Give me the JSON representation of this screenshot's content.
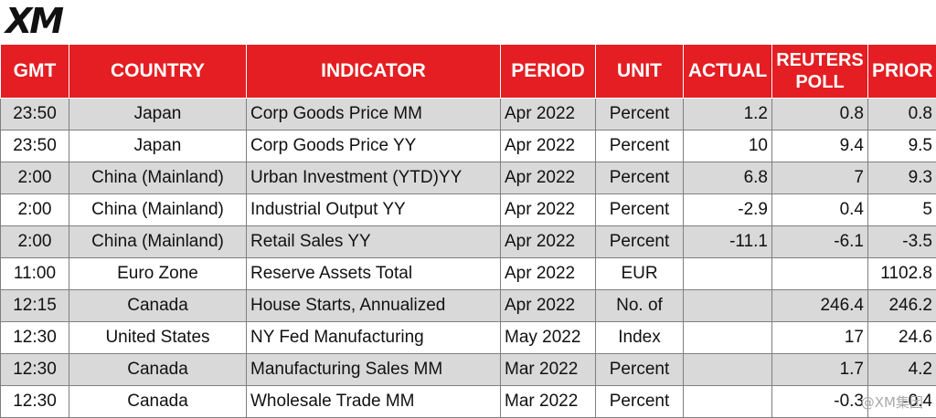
{
  "logo": {
    "text": "XM"
  },
  "table": {
    "headers": [
      "GMT",
      "COUNTRY",
      "INDICATOR",
      "PERIOD",
      "UNIT",
      "ACTUAL",
      "REUTERS POLL",
      "PRIOR"
    ],
    "rows": [
      [
        "23:50",
        "Japan",
        "Corp Goods Price MM",
        "Apr 2022",
        "Percent",
        "1.2",
        "0.8",
        "0.8"
      ],
      [
        "23:50",
        "Japan",
        "Corp Goods Price YY",
        "Apr 2022",
        "Percent",
        "10",
        "9.4",
        "9.5"
      ],
      [
        "2:00",
        "China (Mainland)",
        "Urban Investment (YTD)YY",
        "Apr 2022",
        "Percent",
        "6.8",
        "7",
        "9.3"
      ],
      [
        "2:00",
        "China (Mainland)",
        "Industrial Output YY",
        "Apr 2022",
        "Percent",
        "-2.9",
        "0.4",
        "5"
      ],
      [
        "2:00",
        "China (Mainland)",
        "Retail Sales YY",
        "Apr 2022",
        "Percent",
        "-11.1",
        "-6.1",
        "-3.5"
      ],
      [
        "11:00",
        "Euro Zone",
        "Reserve Assets Total",
        "Apr 2022",
        "EUR",
        "",
        "",
        "1102.8"
      ],
      [
        "12:15",
        "Canada",
        "House Starts, Annualized",
        "Apr 2022",
        "No. of",
        "",
        "246.4",
        "246.2"
      ],
      [
        "12:30",
        "United States",
        "NY Fed Manufacturing",
        "May 2022",
        "Index",
        "",
        "17",
        "24.6"
      ],
      [
        "12:30",
        "Canada",
        "Manufacturing Sales MM",
        "Mar 2022",
        "Percent",
        "",
        "1.7",
        "4.2"
      ],
      [
        "12:30",
        "Canada",
        "Wholesale Trade MM",
        "Mar 2022",
        "Percent",
        "",
        "-0.3",
        "-0.4"
      ]
    ]
  },
  "watermark": "@XM集团"
}
